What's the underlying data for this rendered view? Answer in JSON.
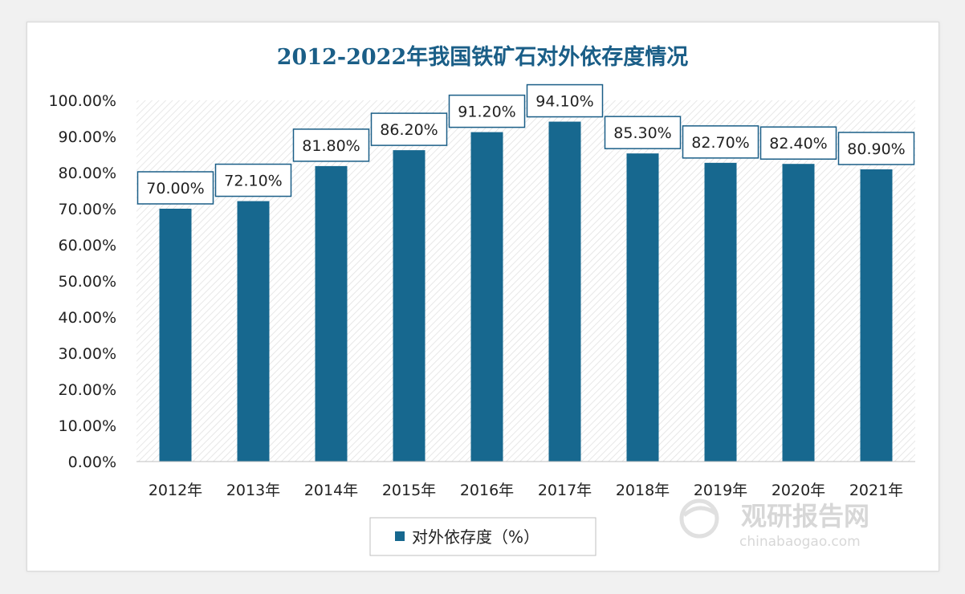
{
  "chart_data": {
    "type": "bar",
    "title": "2012-2022年我国铁矿石对外依存度情况",
    "categories": [
      "2012年",
      "2013年",
      "2014年",
      "2015年",
      "2016年",
      "2017年",
      "2018年",
      "2019年",
      "2020年",
      "2021年"
    ],
    "series": [
      {
        "name": "对外依存度（%）",
        "values": [
          70.0,
          72.1,
          81.8,
          86.2,
          91.2,
          94.1,
          85.3,
          82.7,
          82.4,
          80.9
        ],
        "labels": [
          "70.00%",
          "72.10%",
          "81.80%",
          "86.20%",
          "91.20%",
          "94.10%",
          "85.30%",
          "82.70%",
          "82.40%",
          "80.90%"
        ]
      }
    ],
    "y_ticks": [
      "0.00%",
      "10.00%",
      "20.00%",
      "30.00%",
      "40.00%",
      "50.00%",
      "60.00%",
      "70.00%",
      "80.00%",
      "90.00%",
      "100.00%"
    ],
    "ylim": [
      0,
      100
    ],
    "xlabel": "",
    "ylabel": "",
    "legend": "bottom",
    "grid": false,
    "bar_color": "#17688f",
    "title_color": "#1a5e87"
  },
  "watermark": {
    "brand": "观研报告网",
    "url": "chinabaogao.com"
  }
}
